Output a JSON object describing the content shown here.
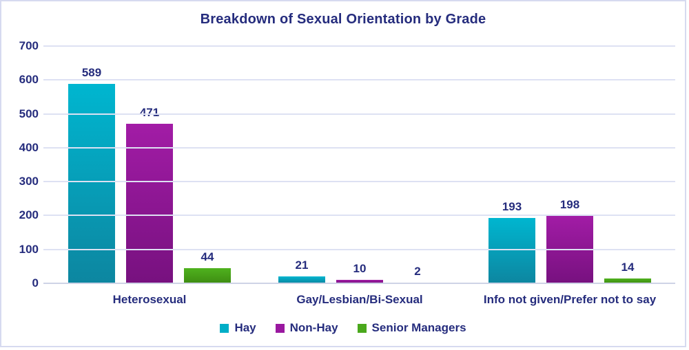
{
  "chart_data": {
    "type": "bar",
    "title": "Breakdown of Sexual Orientation by Grade",
    "categories": [
      "Heterosexual",
      "Gay/Lesbian/Bi-Sexual",
      "Info not given/Prefer not to say"
    ],
    "series": [
      {
        "name": "Hay",
        "color": "#00aec7",
        "gradient_top": "#00b6d0",
        "gradient_bottom": "#0d86a0",
        "values": [
          589,
          21,
          193
        ]
      },
      {
        "name": "Non-Hay",
        "color": "#9a18a0",
        "gradient_top": "#a21ca6",
        "gradient_bottom": "#77117f",
        "values": [
          471,
          10,
          198
        ]
      },
      {
        "name": "Senior Managers",
        "color": "#4aa81c",
        "gradient_top": "#4fb21e",
        "gradient_bottom": "#3e8c12",
        "values": [
          44,
          2,
          14
        ]
      }
    ],
    "ylim": [
      0,
      700
    ],
    "yticks": [
      0,
      100,
      200,
      300,
      400,
      500,
      600,
      700
    ],
    "grid": true,
    "value_labels": true,
    "legend_position": "bottom",
    "xlabel": "",
    "ylabel": ""
  },
  "style": {
    "text_color": "#252c7d",
    "gridline_color": "#dde1f3",
    "axis_line_color": "#ced3e6",
    "border_color": "#d6daf0",
    "background": "#ffffff"
  }
}
